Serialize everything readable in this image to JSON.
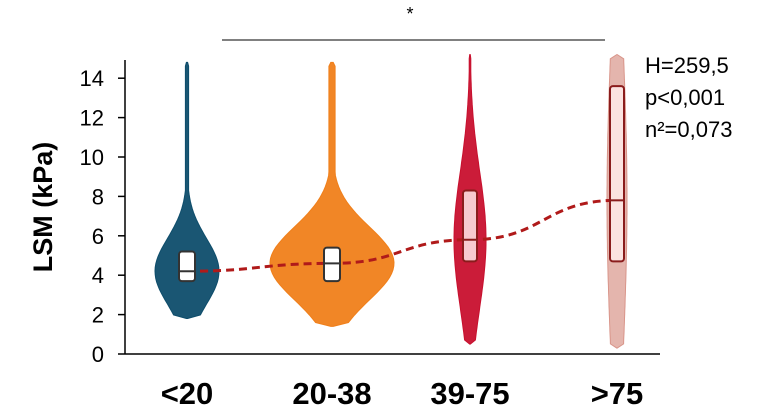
{
  "chart_data": {
    "type": "violin",
    "ylabel": "LSM (kPa)",
    "ylim": [
      0,
      15
    ],
    "yticks": [
      "0",
      "2",
      "4",
      "6",
      "8",
      "10",
      "12",
      "14"
    ],
    "categories": [
      "<20",
      "20-38",
      "39-75",
      ">75"
    ],
    "groups": [
      {
        "category": "<20",
        "color": "#0e4d6b",
        "min": 1.8,
        "max": 14.8,
        "q1": 3.7,
        "median": 4.2,
        "q3": 5.2
      },
      {
        "category": "20-38",
        "color": "#f07f1a",
        "min": 1.4,
        "max": 14.8,
        "q1": 3.7,
        "median": 4.6,
        "q3": 5.4
      },
      {
        "category": "39-75",
        "color": "#c8102e",
        "min": 0.5,
        "max": 15.2,
        "q1": 4.7,
        "median": 5.8,
        "q3": 8.3
      },
      {
        "category": ">75",
        "color": "#d9958a",
        "min": 0.3,
        "max": 15.2,
        "q1": 4.7,
        "median": 7.8,
        "q3": 13.6
      }
    ],
    "trend_line": {
      "style": "dashed",
      "color": "#b01a1a",
      "y": [
        4.2,
        4.6,
        5.8,
        7.8
      ]
    },
    "significance": {
      "marker": "*",
      "from": "20-38",
      "to": ">75"
    },
    "annotations": [
      "H=259,5",
      "p<0,001",
      "n²=0,073"
    ]
  }
}
